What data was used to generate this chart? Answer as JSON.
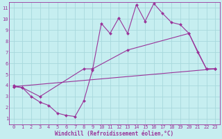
{
  "bg_color": "#c6eef0",
  "grid_color": "#a8d8dc",
  "line_color": "#993399",
  "xlabel": "Windchill (Refroidissement éolien,°C)",
  "xlim": [
    -0.5,
    23.5
  ],
  "ylim": [
    0.5,
    11.5
  ],
  "yticks": [
    1,
    2,
    3,
    4,
    5,
    6,
    7,
    8,
    9,
    10,
    11
  ],
  "xticks": [
    0,
    1,
    2,
    3,
    4,
    5,
    6,
    7,
    8,
    9,
    10,
    11,
    12,
    13,
    14,
    15,
    16,
    17,
    18,
    19,
    20,
    21,
    22,
    23
  ],
  "line1_x": [
    0,
    1,
    2,
    3,
    4,
    5,
    6,
    7,
    8,
    9,
    10,
    11,
    12,
    13,
    14,
    15,
    16,
    17,
    18,
    19,
    20,
    21,
    22,
    23
  ],
  "line1_y": [
    4.0,
    3.8,
    3.0,
    2.5,
    2.2,
    1.5,
    1.3,
    1.2,
    2.6,
    5.4,
    9.6,
    8.7,
    10.1,
    8.7,
    11.3,
    9.8,
    11.4,
    10.5,
    9.7,
    9.5,
    8.7,
    7.0,
    5.5,
    5.5
  ],
  "line2_x": [
    0,
    1,
    3,
    8,
    9,
    13,
    20,
    22,
    23
  ],
  "line2_y": [
    3.9,
    3.8,
    3.0,
    5.5,
    5.5,
    7.2,
    8.7,
    5.5,
    5.5
  ],
  "line3_x": [
    0,
    23
  ],
  "line3_y": [
    3.9,
    5.5
  ],
  "marker_size": 2.0,
  "line_width": 0.8,
  "tick_fontsize": 5.0,
  "xlabel_fontsize": 5.5
}
